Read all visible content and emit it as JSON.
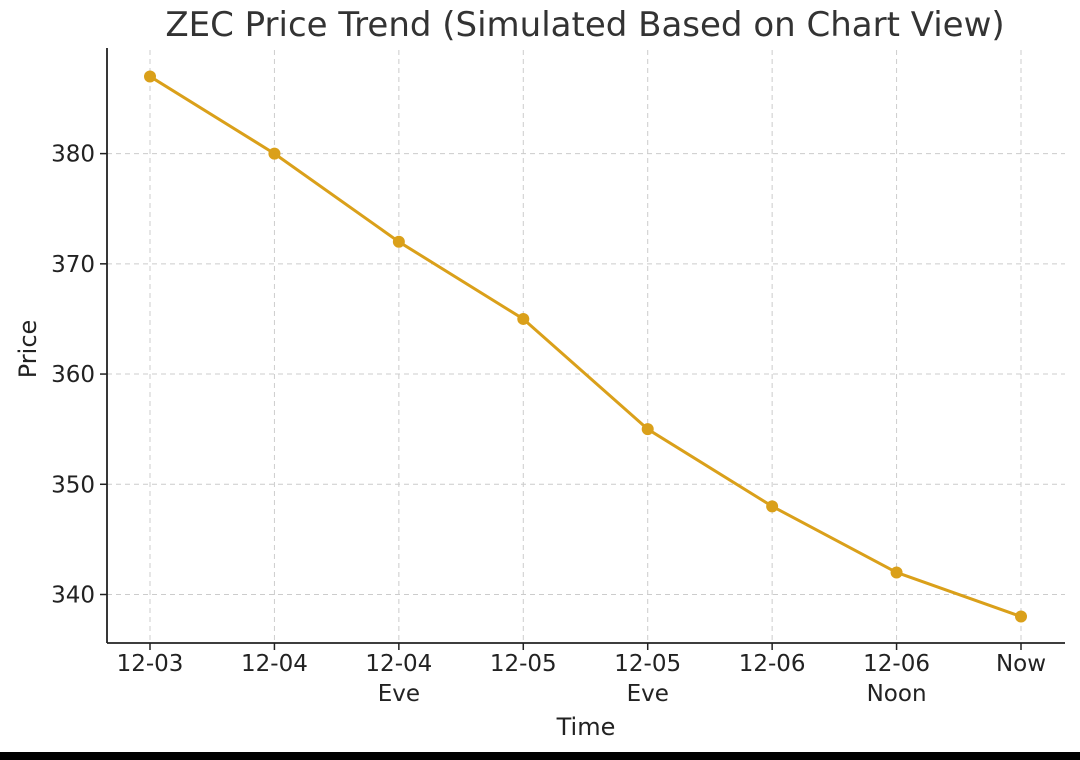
{
  "chart_data": {
    "type": "line",
    "title": "ZEC Price Trend (Simulated Based on Chart View)",
    "xlabel": "Time",
    "ylabel": "Price",
    "categories": [
      [
        "12-03"
      ],
      [
        "12-04"
      ],
      [
        "12-04",
        "Eve"
      ],
      [
        "12-05"
      ],
      [
        "12-05",
        "Eve"
      ],
      [
        "12-06"
      ],
      [
        "12-06",
        "Noon"
      ],
      [
        "Now"
      ]
    ],
    "values": [
      387,
      380,
      372,
      365,
      355,
      348,
      342,
      338
    ],
    "yticks": [
      340,
      350,
      360,
      370,
      380
    ],
    "ylim": [
      335.6,
      389.4
    ],
    "grid": true,
    "line_color": "#DAA01A",
    "marker": "circle"
  }
}
